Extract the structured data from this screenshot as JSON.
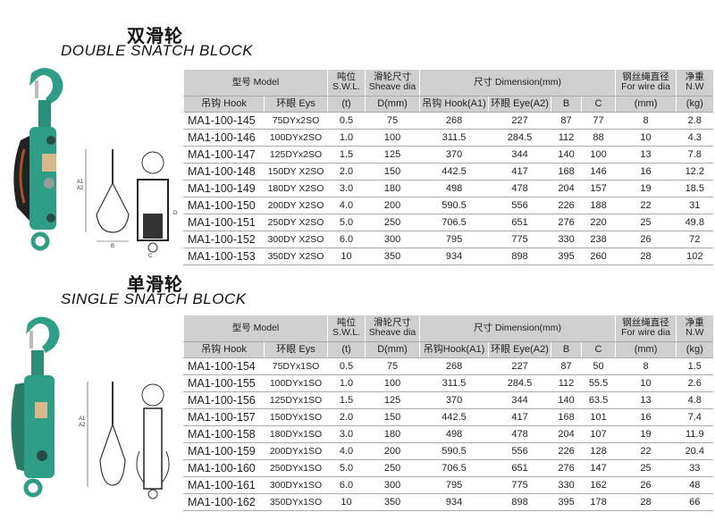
{
  "double": {
    "title_cn": "双滑轮",
    "title_en": "DOUBLE SNATCH BLOCK",
    "header": {
      "model": "型号 Model",
      "swl_cn": "吨位",
      "swl_en": "S.W.L.",
      "sheave_cn": "滑轮尺寸",
      "sheave_en": "Sheave dia",
      "dimension": "尺寸 Dimension(mm)",
      "wire_cn": "钢丝绳直径",
      "wire_en": "For wire dia",
      "nw_cn": "净重",
      "nw_en": "N.W",
      "hook": "吊钩 Hook",
      "eys": "环眼 Eys",
      "t": "(t)",
      "d": "D(mm)",
      "a1": "吊钩 Hook(A1)",
      "a2": "环眼 Eye(A2)",
      "b": "B",
      "c": "C",
      "mm": "(mm)",
      "kg": "(kg)"
    },
    "rows": [
      [
        "MA1-100-145",
        "75DYx2SO",
        "0.5",
        "75",
        "268",
        "227",
        "87",
        "77",
        "8",
        "2.8"
      ],
      [
        "MA1-100-146",
        "100DYx2SO",
        "1.0",
        "100",
        "311.5",
        "284.5",
        "112",
        "88",
        "10",
        "4.3"
      ],
      [
        "MA1-100-147",
        "125DYx2SO",
        "1.5",
        "125",
        "370",
        "344",
        "140",
        "100",
        "13",
        "7.8"
      ],
      [
        "MA1-100-148",
        "150DY X2SO",
        "2.0",
        "150",
        "442.5",
        "417",
        "168",
        "146",
        "16",
        "12.2"
      ],
      [
        "MA1-100-149",
        "180DY X2SO",
        "3.0",
        "180",
        "498",
        "478",
        "204",
        "157",
        "19",
        "18.5"
      ],
      [
        "MA1-100-150",
        "200DY X2SO",
        "4.0",
        "200",
        "590.5",
        "556",
        "226",
        "188",
        "22",
        "31"
      ],
      [
        "MA1-100-151",
        "250DY X2SO",
        "5.0",
        "250",
        "706.5",
        "651",
        "276",
        "220",
        "25",
        "49.8"
      ],
      [
        "MA1-100-152",
        "300DY X2SO",
        "6.0",
        "300",
        "795",
        "775",
        "330",
        "238",
        "26",
        "72"
      ],
      [
        "MA1-100-153",
        "350DY X2SO",
        "10",
        "350",
        "934",
        "898",
        "395",
        "260",
        "28",
        "102"
      ]
    ]
  },
  "single": {
    "title_cn": "单滑轮",
    "title_en": "SINGLE SNATCH BLOCK",
    "header": {
      "model": "型号 Model",
      "swl_cn": "吨位",
      "swl_en": "S.W.L.",
      "sheave_cn": "滑轮尺寸",
      "sheave_en": "Sheave dia",
      "dimension": "尺寸 Dimension(mm)",
      "wire_cn": "钢丝绳直径",
      "wire_en": "For wire dia",
      "nw_cn": "净重",
      "nw_en": "N.W",
      "hook": "吊钩 Hook",
      "eys": "环眼 Eys",
      "t": "(t)",
      "d": "D(mm)",
      "a1": "吊钩Hook(A1)",
      "a2": "环眼 Eye(A2)",
      "b": "B",
      "c": "C",
      "mm": "(mm)",
      "kg": "(kg)"
    },
    "rows": [
      [
        "MA1-100-154",
        "75DYx1SO",
        "0.5",
        "75",
        "268",
        "227",
        "87",
        "50",
        "8",
        "1.5"
      ],
      [
        "MA1-100-155",
        "100DYx1SO",
        "1.0",
        "100",
        "311.5",
        "284.5",
        "112",
        "55.5",
        "10",
        "2.6"
      ],
      [
        "MA1-100-156",
        "125DYx1SO",
        "1.5",
        "125",
        "370",
        "344",
        "140",
        "63.5",
        "13",
        "4.8"
      ],
      [
        "MA1-100-157",
        "150DYx1SO",
        "2.0",
        "150",
        "442.5",
        "417",
        "168",
        "101",
        "16",
        "7.4"
      ],
      [
        "MA1-100-158",
        "180DYx1SO",
        "3.0",
        "180",
        "498",
        "478",
        "204",
        "107",
        "19",
        "11.9"
      ],
      [
        "MA1-100-159",
        "200DYx1SO",
        "4.0",
        "200",
        "590.5",
        "556",
        "226",
        "128",
        "22",
        "20.4"
      ],
      [
        "MA1-100-160",
        "250DYx1SO",
        "5.0",
        "250",
        "706.5",
        "651",
        "276",
        "147",
        "25",
        "33"
      ],
      [
        "MA1-100-161",
        "300DYx1SO",
        "6.0",
        "300",
        "795",
        "775",
        "330",
        "162",
        "26",
        "48"
      ],
      [
        "MA1-100-162",
        "350DYx1SO",
        "10",
        "350",
        "934",
        "898",
        "395",
        "178",
        "28",
        "66"
      ]
    ]
  },
  "diagram_labels": {
    "a1": "A1",
    "a2": "A2",
    "b": "B",
    "c": "C",
    "d": "D"
  },
  "colors": {
    "block_green": "#2f9e86",
    "header_gray": "#cfcfcf"
  }
}
